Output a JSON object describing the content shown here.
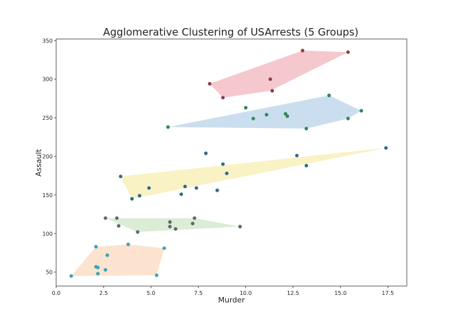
{
  "chart_data": {
    "type": "scatter",
    "title": "Agglomerative Clustering of USArrests (5 Groups)",
    "xlabel": "Murder",
    "ylabel": "Assault",
    "xlim": [
      0.0,
      18.5
    ],
    "ylim": [
      32,
      352
    ],
    "xticks": [
      0.0,
      2.5,
      5.0,
      7.5,
      10.0,
      12.5,
      15.0,
      17.5
    ],
    "xtick_labels": [
      "0.0",
      "2.5",
      "5.0",
      "7.5",
      "10.0",
      "12.5",
      "15.0",
      "17.5"
    ],
    "yticks": [
      50,
      100,
      150,
      200,
      250,
      300,
      350
    ],
    "ytick_labels": [
      "50",
      "100",
      "150",
      "200",
      "250",
      "300",
      "350"
    ],
    "grid": false,
    "legend": "none",
    "series": [
      {
        "hull_color": "#f2b6bd",
        "point_color": "#8c3f45",
        "hull": [
          [
            8.1,
            294
          ],
          [
            13.0,
            337
          ],
          [
            15.4,
            335
          ],
          [
            11.3,
            285
          ],
          [
            8.8,
            276
          ]
        ],
        "points": [
          [
            8.1,
            294
          ],
          [
            13.0,
            337
          ],
          [
            15.4,
            335
          ],
          [
            11.3,
            300
          ],
          [
            11.4,
            285
          ],
          [
            8.8,
            276
          ]
        ]
      },
      {
        "hull_color": "#b9d3ea",
        "point_color": "#2e8a55",
        "hull": [
          [
            5.9,
            238
          ],
          [
            14.4,
            279
          ],
          [
            16.1,
            259
          ],
          [
            15.4,
            249
          ],
          [
            13.2,
            236
          ]
        ],
        "points": [
          [
            5.9,
            238
          ],
          [
            10.0,
            263
          ],
          [
            10.4,
            249
          ],
          [
            11.1,
            254
          ],
          [
            12.1,
            255
          ],
          [
            12.2,
            252
          ],
          [
            13.2,
            236
          ],
          [
            14.4,
            279
          ],
          [
            15.4,
            249
          ],
          [
            16.1,
            259
          ]
        ]
      },
      {
        "hull_color": "#f7eeb0",
        "point_color": "#2f6d88",
        "hull": [
          [
            3.4,
            174
          ],
          [
            17.4,
            211
          ],
          [
            4.0,
            145
          ]
        ],
        "points": [
          [
            3.4,
            174
          ],
          [
            4.0,
            145
          ],
          [
            4.4,
            149
          ],
          [
            4.9,
            159
          ],
          [
            6.6,
            151
          ],
          [
            6.8,
            161
          ],
          [
            7.4,
            159
          ],
          [
            7.9,
            204
          ],
          [
            8.5,
            156
          ],
          [
            8.8,
            190
          ],
          [
            9.0,
            178
          ],
          [
            12.7,
            201
          ],
          [
            13.2,
            188
          ],
          [
            17.4,
            211
          ]
        ]
      },
      {
        "hull_color": "#cfe6c9",
        "point_color": "#5d6a6a",
        "hull": [
          [
            2.6,
            120
          ],
          [
            7.3,
            120
          ],
          [
            9.7,
            109
          ],
          [
            4.3,
            102
          ]
        ],
        "points": [
          [
            2.6,
            120
          ],
          [
            3.2,
            120
          ],
          [
            3.3,
            110
          ],
          [
            4.3,
            102
          ],
          [
            6.0,
            115
          ],
          [
            6.0,
            109
          ],
          [
            6.3,
            106
          ],
          [
            7.2,
            113
          ],
          [
            7.3,
            120
          ],
          [
            9.7,
            109
          ]
        ]
      },
      {
        "hull_color": "#fbd9c0",
        "point_color": "#3aa3b3",
        "hull": [
          [
            0.8,
            45
          ],
          [
            2.1,
            83
          ],
          [
            3.8,
            86
          ],
          [
            5.7,
            81
          ],
          [
            5.3,
            46
          ]
        ],
        "points": [
          [
            0.8,
            45
          ],
          [
            2.1,
            83
          ],
          [
            2.1,
            57
          ],
          [
            2.2,
            56
          ],
          [
            2.2,
            48
          ],
          [
            2.6,
            53
          ],
          [
            2.7,
            72
          ],
          [
            3.8,
            86
          ],
          [
            5.3,
            46
          ],
          [
            5.7,
            81
          ]
        ]
      }
    ]
  }
}
